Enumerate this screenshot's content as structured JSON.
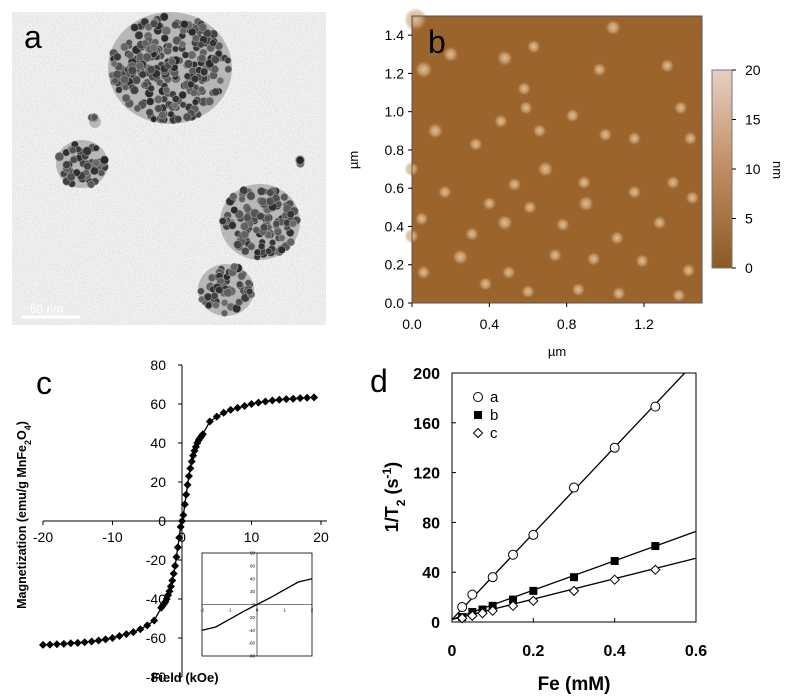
{
  "panel_labels": {
    "a": "a",
    "b": "b",
    "c": "c",
    "d": "d"
  },
  "tem": {
    "scale_bar": "50 nm"
  },
  "chart_data": [
    {
      "panel": "b",
      "type": "heatmap",
      "xlabel": "µm",
      "ylabel": "µm",
      "xlim": [
        0,
        1.5
      ],
      "ylim": [
        0,
        1.5
      ],
      "x_ticks": [
        "0.0",
        "0.4",
        "0.8",
        "1.2"
      ],
      "y_ticks": [
        "0.0",
        "0.2",
        "0.4",
        "0.6",
        "0.8",
        "1.0",
        "1.2",
        "1.4"
      ],
      "colorbar": {
        "label": "nm",
        "ticks": [
          "0",
          "5",
          "10",
          "15",
          "20"
        ],
        "range": [
          0,
          20
        ],
        "color_low": "#8a5a26",
        "color_high": "#e8cfc3"
      },
      "background_color": "#9b642d",
      "particles": [
        {
          "x": 0.02,
          "y": 1.48,
          "h": 8
        },
        {
          "x": 0.06,
          "y": 1.22,
          "h": 6
        },
        {
          "x": 0.2,
          "y": 1.3,
          "h": 5
        },
        {
          "x": 0.48,
          "y": 1.28,
          "h": 5
        },
        {
          "x": 0.63,
          "y": 1.34,
          "h": 4
        },
        {
          "x": 0.97,
          "y": 1.22,
          "h": 4
        },
        {
          "x": 1.32,
          "y": 1.24,
          "h": 4
        },
        {
          "x": 1.04,
          "y": 1.44,
          "h": 5
        },
        {
          "x": 0.58,
          "y": 1.12,
          "h": 4
        },
        {
          "x": 0.12,
          "y": 0.9,
          "h": 5
        },
        {
          "x": 0.46,
          "y": 0.95,
          "h": 4
        },
        {
          "x": 0.83,
          "y": 0.98,
          "h": 4
        },
        {
          "x": 0.66,
          "y": 0.9,
          "h": 4
        },
        {
          "x": 1.0,
          "y": 0.88,
          "h": 4
        },
        {
          "x": 1.39,
          "y": 1.02,
          "h": 4
        },
        {
          "x": 0.59,
          "y": 1.02,
          "h": 4
        },
        {
          "x": 1.15,
          "y": 0.86,
          "h": 4
        },
        {
          "x": 1.44,
          "y": 0.86,
          "h": 4
        },
        {
          "x": 0.33,
          "y": 0.83,
          "h": 4
        },
        {
          "x": 0.69,
          "y": 0.7,
          "h": 5
        },
        {
          "x": 0.0,
          "y": 0.7,
          "h": 4
        },
        {
          "x": 0.53,
          "y": 0.62,
          "h": 4
        },
        {
          "x": 0.89,
          "y": 0.63,
          "h": 4
        },
        {
          "x": 1.35,
          "y": 0.63,
          "h": 4
        },
        {
          "x": 1.15,
          "y": 0.58,
          "h": 4
        },
        {
          "x": 0.17,
          "y": 0.58,
          "h": 4
        },
        {
          "x": 0.4,
          "y": 0.52,
          "h": 4
        },
        {
          "x": 0.9,
          "y": 0.52,
          "h": 5
        },
        {
          "x": 0.61,
          "y": 0.5,
          "h": 4
        },
        {
          "x": 1.45,
          "y": 0.55,
          "h": 4
        },
        {
          "x": 0.05,
          "y": 0.44,
          "h": 4
        },
        {
          "x": 0.48,
          "y": 0.42,
          "h": 5
        },
        {
          "x": 0.78,
          "y": 0.41,
          "h": 4
        },
        {
          "x": 0.0,
          "y": 0.35,
          "h": 4
        },
        {
          "x": 0.31,
          "y": 0.36,
          "h": 4
        },
        {
          "x": 1.06,
          "y": 0.34,
          "h": 4
        },
        {
          "x": 1.19,
          "y": 0.22,
          "h": 4
        },
        {
          "x": 0.74,
          "y": 0.25,
          "h": 4
        },
        {
          "x": 0.25,
          "y": 0.24,
          "h": 5
        },
        {
          "x": 0.06,
          "y": 0.16,
          "h": 4
        },
        {
          "x": 0.5,
          "y": 0.16,
          "h": 4
        },
        {
          "x": 0.6,
          "y": 0.06,
          "h": 4
        },
        {
          "x": 0.86,
          "y": 0.07,
          "h": 4
        },
        {
          "x": 1.07,
          "y": 0.05,
          "h": 4
        },
        {
          "x": 1.43,
          "y": 0.17,
          "h": 4
        },
        {
          "x": 0.94,
          "y": 0.23,
          "h": 4
        },
        {
          "x": 0.38,
          "y": 0.1,
          "h": 4
        },
        {
          "x": 1.28,
          "y": 0.42,
          "h": 4
        },
        {
          "x": 1.38,
          "y": 0.04,
          "h": 4
        }
      ]
    },
    {
      "panel": "c",
      "type": "line",
      "xlabel": "Field (kOe)",
      "ylabel": "Magnetization (emu/g MnFe2O4)",
      "ylabel_prefix": "Magnetization (emu/g MnFe",
      "ylabel_sub": "2",
      "ylabel_mid": "O",
      "ylabel_sub2": "4",
      "ylabel_suffix": ")",
      "xlim": [
        -20,
        20
      ],
      "ylim": [
        -80,
        80
      ],
      "x_ticks": [
        "-20",
        "-10",
        "0",
        "10",
        "20"
      ],
      "y_ticks": [
        "-80",
        "-60",
        "-40",
        "-20",
        "0",
        "20",
        "40",
        "60",
        "80"
      ],
      "series": [
        {
          "marker": "diamond",
          "x": [
            -20,
            -19,
            -18,
            -17,
            -16,
            -15,
            -14,
            -13,
            -12,
            -11,
            -10,
            -9,
            -8,
            -7,
            -6,
            -5,
            -4,
            -3,
            -2.8,
            -2.6,
            -2.4,
            -2.2,
            -2.0,
            -1.8,
            -1.6,
            -1.4,
            -1.2,
            -1.0,
            -0.8,
            -0.6,
            -0.4,
            -0.2,
            0,
            0.2,
            0.4,
            0.6,
            0.8,
            1.0,
            1.2,
            1.4,
            1.6,
            1.8,
            2.0,
            2.2,
            2.4,
            2.6,
            2.8,
            3,
            4,
            5,
            6,
            7,
            8,
            9,
            10,
            11,
            12,
            13,
            14,
            15,
            16,
            17,
            18,
            19
          ],
          "y": [
            -63.5,
            -63.4,
            -63.2,
            -63,
            -62.7,
            -62.5,
            -62.2,
            -61.8,
            -61.3,
            -60.7,
            -60,
            -59,
            -58,
            -57,
            -55.5,
            -53.5,
            -51,
            -44.5,
            -43.5,
            -42.5,
            -41.5,
            -40,
            -38,
            -36,
            -33.5,
            -30.5,
            -27,
            -23,
            -18.5,
            -13.5,
            -8.5,
            -3,
            0,
            3,
            8.5,
            13.5,
            18.5,
            23,
            27,
            30.5,
            33.5,
            36,
            38,
            40,
            41.5,
            42.5,
            43.5,
            44.5,
            51,
            53.5,
            55.5,
            57,
            58,
            59,
            60,
            60.7,
            61.3,
            61.8,
            62.2,
            62.5,
            62.7,
            63,
            63.2,
            63.4
          ]
        }
      ],
      "inset": {
        "xlim": [
          -2,
          2
        ],
        "ylim": [
          -80,
          80
        ],
        "x_ticks": [
          "-2",
          "-1",
          "0",
          "1",
          "2"
        ],
        "y_ticks": [
          "-80",
          "-60",
          "-40",
          "-20",
          "0",
          "20",
          "40",
          "60",
          "80"
        ],
        "x": [
          -2,
          -1.5,
          -1,
          -0.5,
          0,
          0.5,
          1,
          1.5,
          2
        ],
        "y": [
          -40,
          -35,
          -23,
          -11,
          0,
          11,
          23,
          35,
          40
        ]
      }
    },
    {
      "panel": "d",
      "type": "scatter",
      "xlabel": "Fe (mM)",
      "ylabel": "1/T2 (s-1)",
      "ylabel_prefix": "1/T",
      "ylabel_sub": "2",
      "ylabel_mid": " (s",
      "ylabel_sup": "-1",
      "ylabel_suffix": ")",
      "xlim": [
        0,
        0.6
      ],
      "ylim": [
        0,
        200
      ],
      "x_ticks": [
        "0",
        "0.2",
        "0.4",
        "0.6"
      ],
      "y_ticks": [
        "0",
        "40",
        "80",
        "120",
        "160",
        "200"
      ],
      "legend_placement": "top-left",
      "series": [
        {
          "name": "a",
          "marker": "circle-open",
          "x": [
            0.025,
            0.05,
            0.1,
            0.15,
            0.2,
            0.3,
            0.4,
            0.5
          ],
          "y": [
            12,
            22,
            36,
            54,
            70,
            108,
            140,
            173
          ],
          "fit": {
            "slope": 346,
            "intercept": 2
          }
        },
        {
          "name": "b",
          "marker": "square-filled",
          "x": [
            0.025,
            0.05,
            0.075,
            0.1,
            0.15,
            0.2,
            0.3,
            0.4,
            0.5
          ],
          "y": [
            4,
            8,
            10,
            13,
            18,
            25,
            36,
            49,
            61
          ],
          "fit": {
            "slope": 118,
            "intercept": 2
          }
        },
        {
          "name": "c",
          "marker": "diamond-open",
          "x": [
            0.025,
            0.05,
            0.075,
            0.1,
            0.15,
            0.2,
            0.3,
            0.4,
            0.5
          ],
          "y": [
            3,
            5,
            7,
            9,
            13,
            17,
            25,
            34,
            42
          ],
          "fit": {
            "slope": 82,
            "intercept": 2
          }
        }
      ]
    }
  ]
}
